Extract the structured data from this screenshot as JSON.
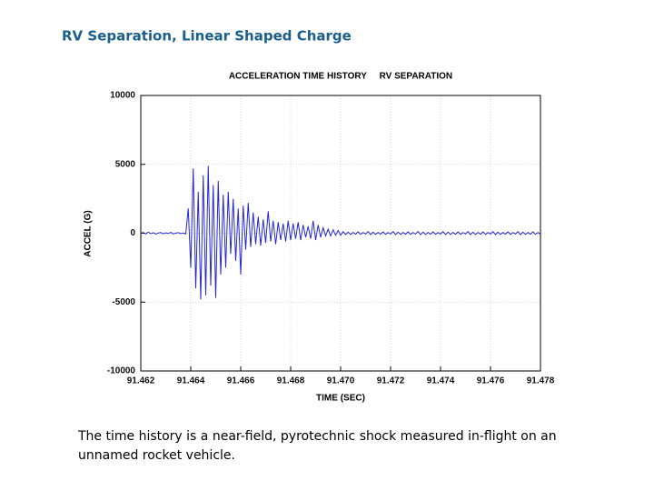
{
  "page_title": "RV Separation, Linear Shaped Charge",
  "caption": "The time history is a near-field, pyrotechnic shock measured in-flight on an unnamed rocket vehicle.",
  "chart_data": {
    "type": "line",
    "title": "ACCELERATION TIME HISTORY     RV SEPARATION",
    "x_label": "TIME (SEC)",
    "y_label": "ACCEL (G)",
    "color": "#2626d9",
    "grid": true,
    "xlim": [
      91.462,
      91.478
    ],
    "xticks": [
      91.462,
      91.464,
      91.466,
      91.468,
      {
        "value": 91.47,
        "label": "91.470"
      },
      91.472,
      91.474,
      91.476,
      91.478
    ],
    "ylim": [
      -10000,
      10000
    ],
    "yticks": [
      -10000,
      -5000,
      0,
      5000,
      10000
    ],
    "x": [
      91.462,
      91.4621,
      91.4622,
      91.4623,
      91.4624,
      91.4625,
      91.4626,
      91.4627,
      91.4628,
      91.4629,
      91.463,
      91.4631,
      91.4632,
      91.4633,
      91.4634,
      91.4635,
      91.4636,
      91.4637,
      91.4638,
      91.4639,
      91.464,
      91.4641,
      91.4642,
      91.4643,
      91.4644,
      91.4645,
      91.4646,
      91.4647,
      91.4648,
      91.4649,
      91.465,
      91.4651,
      91.4652,
      91.4653,
      91.4654,
      91.4655,
      91.4656,
      91.4657,
      91.4658,
      91.4659,
      91.466,
      91.4661,
      91.4662,
      91.4663,
      91.4664,
      91.4665,
      91.4666,
      91.4667,
      91.4668,
      91.4669,
      91.467,
      91.4671,
      91.4672,
      91.4673,
      91.4674,
      91.4675,
      91.4676,
      91.4677,
      91.4678,
      91.4679,
      91.468,
      91.4681,
      91.4682,
      91.4683,
      91.4684,
      91.4685,
      91.4686,
      91.4687,
      91.4688,
      91.4689,
      91.469,
      91.4691,
      91.4692,
      91.4693,
      91.4694,
      91.4695,
      91.4696,
      91.4697,
      91.4698,
      91.4699,
      91.47,
      91.4701,
      91.4702,
      91.4703,
      91.4704,
      91.4705,
      91.4706,
      91.4707,
      91.4708,
      91.4709,
      91.471,
      91.4711,
      91.4712,
      91.4713,
      91.4714,
      91.4715,
      91.4716,
      91.4717,
      91.4718,
      91.4719,
      91.472,
      91.4721,
      91.4722,
      91.4723,
      91.4724,
      91.4725,
      91.4726,
      91.4727,
      91.4728,
      91.4729,
      91.473,
      91.4731,
      91.4732,
      91.4733,
      91.4734,
      91.4735,
      91.4736,
      91.4737,
      91.4738,
      91.4739,
      91.474,
      91.4741,
      91.4742,
      91.4743,
      91.4744,
      91.4745,
      91.4746,
      91.4747,
      91.4748,
      91.4749,
      91.475,
      91.4751,
      91.4752,
      91.4753,
      91.4754,
      91.4755,
      91.4756,
      91.4757,
      91.4758,
      91.4759,
      91.476,
      91.4761,
      91.4762,
      91.4763,
      91.4764,
      91.4765,
      91.4766,
      91.4767,
      91.4768,
      91.4769,
      91.477,
      91.4771,
      91.4772,
      91.4773,
      91.4774,
      91.4775,
      91.4776,
      91.4777,
      91.4778,
      91.4779,
      91.478
    ],
    "values": [
      0,
      50,
      -50,
      80,
      -30,
      40,
      -60,
      20,
      50,
      -40,
      30,
      -20,
      60,
      -50,
      10,
      40,
      -30,
      20,
      -50,
      1800,
      -2500,
      4700,
      -4000,
      3000,
      -4800,
      4200,
      -4500,
      4900,
      -3800,
      3500,
      -4700,
      3800,
      -3000,
      2800,
      -2500,
      3000,
      -1500,
      2500,
      -2000,
      1800,
      -3000,
      2000,
      -1200,
      2200,
      -1000,
      1500,
      -800,
      1200,
      -900,
      1000,
      -700,
      1600,
      -600,
      900,
      -800,
      800,
      -500,
      700,
      -600,
      900,
      -500,
      700,
      -400,
      800,
      -500,
      600,
      -300,
      500,
      -400,
      900,
      -500,
      600,
      -300,
      400,
      -200,
      300,
      -200,
      250,
      -150,
      200,
      -150,
      120,
      -100,
      80,
      -90,
      60,
      -70,
      100,
      -80,
      50,
      -60,
      120,
      -100,
      80,
      -90,
      60,
      -70,
      100,
      -80,
      50,
      -60,
      120,
      -100,
      80,
      -90,
      60,
      -70,
      100,
      -80,
      50,
      -60,
      120,
      -100,
      80,
      -90,
      60,
      -70,
      100,
      -80,
      50,
      -60,
      120,
      -100,
      80,
      -90,
      60,
      -70,
      100,
      -80,
      50,
      -60,
      120,
      -100,
      80,
      -90,
      60,
      -70,
      100,
      -80,
      50,
      -60,
      120,
      -100,
      80,
      -90,
      60,
      -70,
      100,
      -80,
      50,
      -60,
      120,
      -100,
      80,
      -90,
      60,
      -70,
      100,
      -80,
      50,
      -60
    ]
  }
}
